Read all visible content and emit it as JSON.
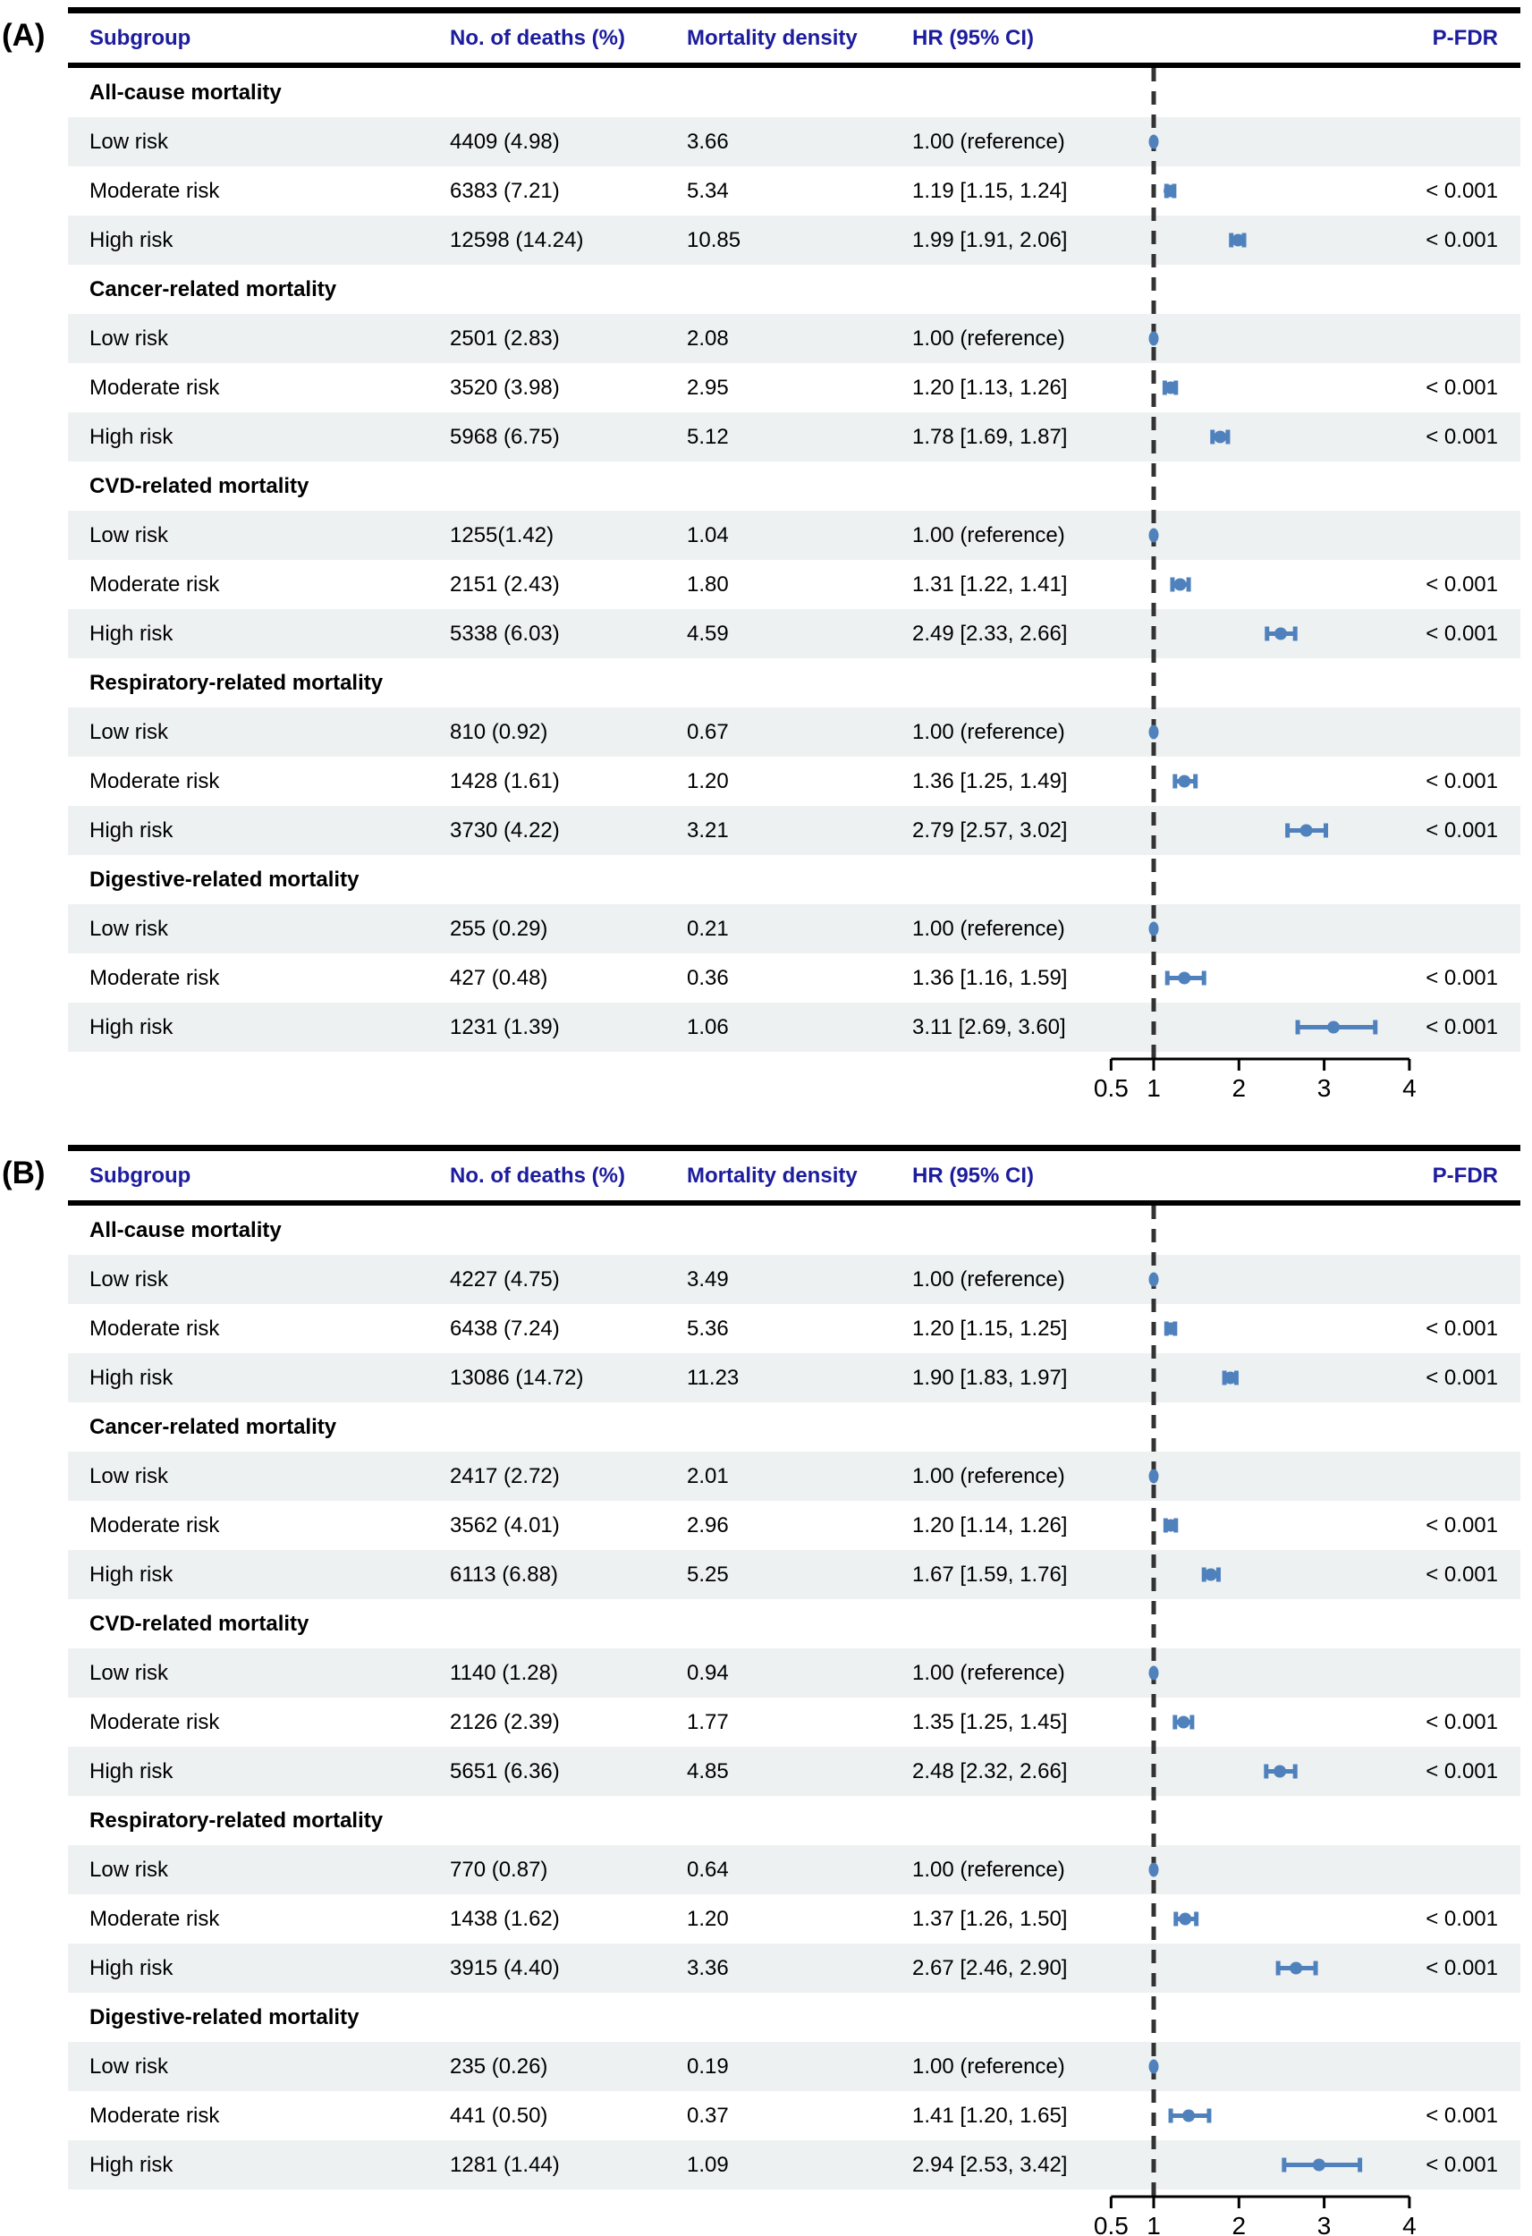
{
  "chart_data": {
    "type": "scatter",
    "subtype": "forest-plot",
    "columns": [
      "Subgroup",
      "No. of deaths (%)",
      "Mortality density",
      "HR (95% CI)",
      "P-FDR"
    ],
    "axis": {
      "scale": "linear",
      "min": 0.5,
      "max": 4,
      "reference_line": 1,
      "tick_values": [
        0.5,
        1,
        2,
        3,
        4
      ],
      "ticks": [
        "0.5",
        "1",
        "2",
        "3",
        "4"
      ]
    },
    "colors": {
      "header_text": "#1c1c9e",
      "marker": "#4f81bd",
      "stripe": "#eef1f1",
      "rule": "#000000",
      "dash": "#333333",
      "axis": "#000000"
    },
    "panels": [
      {
        "label": "(A)",
        "sections": [
          {
            "title": "All-cause mortality",
            "rows": [
              {
                "subgroup": "Low risk",
                "deaths": "4409 (4.98)",
                "density": "3.66",
                "hr_text": "1.00 (reference)",
                "hr": 1.0,
                "lo": null,
                "hi": null,
                "p": ""
              },
              {
                "subgroup": "Moderate risk",
                "deaths": "6383 (7.21)",
                "density": "5.34",
                "hr_text": "1.19 [1.15, 1.24]",
                "hr": 1.19,
                "lo": 1.15,
                "hi": 1.24,
                "p": "< 0.001"
              },
              {
                "subgroup": "High risk",
                "deaths": "12598 (14.24)",
                "density": "10.85",
                "hr_text": "1.99 [1.91, 2.06]",
                "hr": 1.99,
                "lo": 1.91,
                "hi": 2.06,
                "p": "< 0.001"
              }
            ]
          },
          {
            "title": "Cancer-related mortality",
            "rows": [
              {
                "subgroup": "Low risk",
                "deaths": "2501 (2.83)",
                "density": "2.08",
                "hr_text": "1.00 (reference)",
                "hr": 1.0,
                "lo": null,
                "hi": null,
                "p": ""
              },
              {
                "subgroup": "Moderate risk",
                "deaths": "3520 (3.98)",
                "density": "2.95",
                "hr_text": "1.20 [1.13, 1.26]",
                "hr": 1.2,
                "lo": 1.13,
                "hi": 1.26,
                "p": "< 0.001"
              },
              {
                "subgroup": "High risk",
                "deaths": "5968 (6.75)",
                "density": "5.12",
                "hr_text": "1.78 [1.69, 1.87]",
                "hr": 1.78,
                "lo": 1.69,
                "hi": 1.87,
                "p": "< 0.001"
              }
            ]
          },
          {
            "title": "CVD-related mortality",
            "rows": [
              {
                "subgroup": "Low risk",
                "deaths": "1255(1.42)",
                "density": "1.04",
                "hr_text": "1.00 (reference)",
                "hr": 1.0,
                "lo": null,
                "hi": null,
                "p": ""
              },
              {
                "subgroup": "Moderate risk",
                "deaths": "2151 (2.43)",
                "density": "1.80",
                "hr_text": "1.31 [1.22, 1.41]",
                "hr": 1.31,
                "lo": 1.22,
                "hi": 1.41,
                "p": "< 0.001"
              },
              {
                "subgroup": "High risk",
                "deaths": "5338 (6.03)",
                "density": "4.59",
                "hr_text": "2.49 [2.33, 2.66]",
                "hr": 2.49,
                "lo": 2.33,
                "hi": 2.66,
                "p": "< 0.001"
              }
            ]
          },
          {
            "title": "Respiratory-related mortality",
            "rows": [
              {
                "subgroup": "Low risk",
                "deaths": "810 (0.92)",
                "density": "0.67",
                "hr_text": "1.00 (reference)",
                "hr": 1.0,
                "lo": null,
                "hi": null,
                "p": ""
              },
              {
                "subgroup": "Moderate risk",
                "deaths": "1428 (1.61)",
                "density": "1.20",
                "hr_text": "1.36 [1.25, 1.49]",
                "hr": 1.36,
                "lo": 1.25,
                "hi": 1.49,
                "p": "< 0.001"
              },
              {
                "subgroup": "High risk",
                "deaths": "3730 (4.22)",
                "density": "3.21",
                "hr_text": "2.79 [2.57, 3.02]",
                "hr": 2.79,
                "lo": 2.57,
                "hi": 3.02,
                "p": "< 0.001"
              }
            ]
          },
          {
            "title": "Digestive-related mortality",
            "rows": [
              {
                "subgroup": "Low risk",
                "deaths": "255 (0.29)",
                "density": "0.21",
                "hr_text": "1.00 (reference)",
                "hr": 1.0,
                "lo": null,
                "hi": null,
                "p": ""
              },
              {
                "subgroup": "Moderate risk",
                "deaths": "427 (0.48)",
                "density": "0.36",
                "hr_text": "1.36 [1.16, 1.59]",
                "hr": 1.36,
                "lo": 1.16,
                "hi": 1.59,
                "p": "< 0.001"
              },
              {
                "subgroup": "High risk",
                "deaths": "1231 (1.39)",
                "density": "1.06",
                "hr_text": "3.11 [2.69, 3.60]",
                "hr": 3.11,
                "lo": 2.69,
                "hi": 3.6,
                "p": "< 0.001"
              }
            ]
          }
        ]
      },
      {
        "label": "(B)",
        "sections": [
          {
            "title": "All-cause mortality",
            "rows": [
              {
                "subgroup": "Low risk",
                "deaths": "4227 (4.75)",
                "density": "3.49",
                "hr_text": "1.00 (reference)",
                "hr": 1.0,
                "lo": null,
                "hi": null,
                "p": ""
              },
              {
                "subgroup": "Moderate risk",
                "deaths": "6438 (7.24)",
                "density": "5.36",
                "hr_text": "1.20 [1.15, 1.25]",
                "hr": 1.2,
                "lo": 1.15,
                "hi": 1.25,
                "p": "< 0.001"
              },
              {
                "subgroup": "High risk",
                "deaths": "13086 (14.72)",
                "density": "11.23",
                "hr_text": "1.90 [1.83, 1.97]",
                "hr": 1.9,
                "lo": 1.83,
                "hi": 1.97,
                "p": "< 0.001"
              }
            ]
          },
          {
            "title": "Cancer-related mortality",
            "rows": [
              {
                "subgroup": "Low risk",
                "deaths": "2417 (2.72)",
                "density": "2.01",
                "hr_text": "1.00 (reference)",
                "hr": 1.0,
                "lo": null,
                "hi": null,
                "p": ""
              },
              {
                "subgroup": "Moderate risk",
                "deaths": "3562 (4.01)",
                "density": "2.96",
                "hr_text": "1.20 [1.14, 1.26]",
                "hr": 1.2,
                "lo": 1.14,
                "hi": 1.26,
                "p": "< 0.001"
              },
              {
                "subgroup": "High risk",
                "deaths": "6113 (6.88)",
                "density": "5.25",
                "hr_text": "1.67 [1.59, 1.76]",
                "hr": 1.67,
                "lo": 1.59,
                "hi": 1.76,
                "p": "< 0.001"
              }
            ]
          },
          {
            "title": "CVD-related mortality",
            "rows": [
              {
                "subgroup": "Low risk",
                "deaths": "1140 (1.28)",
                "density": "0.94",
                "hr_text": "1.00 (reference)",
                "hr": 1.0,
                "lo": null,
                "hi": null,
                "p": ""
              },
              {
                "subgroup": "Moderate risk",
                "deaths": "2126 (2.39)",
                "density": "1.77",
                "hr_text": "1.35 [1.25, 1.45]",
                "hr": 1.35,
                "lo": 1.25,
                "hi": 1.45,
                "p": "< 0.001"
              },
              {
                "subgroup": "High risk",
                "deaths": "5651 (6.36)",
                "density": "4.85",
                "hr_text": "2.48 [2.32, 2.66]",
                "hr": 2.48,
                "lo": 2.32,
                "hi": 2.66,
                "p": "< 0.001"
              }
            ]
          },
          {
            "title": "Respiratory-related mortality",
            "rows": [
              {
                "subgroup": "Low risk",
                "deaths": "770 (0.87)",
                "density": "0.64",
                "hr_text": "1.00 (reference)",
                "hr": 1.0,
                "lo": null,
                "hi": null,
                "p": ""
              },
              {
                "subgroup": "Moderate risk",
                "deaths": "1438 (1.62)",
                "density": "1.20",
                "hr_text": "1.37 [1.26, 1.50]",
                "hr": 1.37,
                "lo": 1.26,
                "hi": 1.5,
                "p": "< 0.001"
              },
              {
                "subgroup": "High risk",
                "deaths": "3915 (4.40)",
                "density": "3.36",
                "hr_text": "2.67 [2.46, 2.90]",
                "hr": 2.67,
                "lo": 2.46,
                "hi": 2.9,
                "p": "< 0.001"
              }
            ]
          },
          {
            "title": "Digestive-related mortality",
            "rows": [
              {
                "subgroup": "Low risk",
                "deaths": "235 (0.26)",
                "density": "0.19",
                "hr_text": "1.00 (reference)",
                "hr": 1.0,
                "lo": null,
                "hi": null,
                "p": ""
              },
              {
                "subgroup": "Moderate risk",
                "deaths": "441 (0.50)",
                "density": "0.37",
                "hr_text": "1.41 [1.20, 1.65]",
                "hr": 1.41,
                "lo": 1.2,
                "hi": 1.65,
                "p": "< 0.001"
              },
              {
                "subgroup": "High risk",
                "deaths": "1281 (1.44)",
                "density": "1.09",
                "hr_text": "2.94 [2.53, 3.42]",
                "hr": 2.94,
                "lo": 2.53,
                "hi": 3.42,
                "p": "< 0.001"
              }
            ]
          }
        ]
      }
    ]
  }
}
